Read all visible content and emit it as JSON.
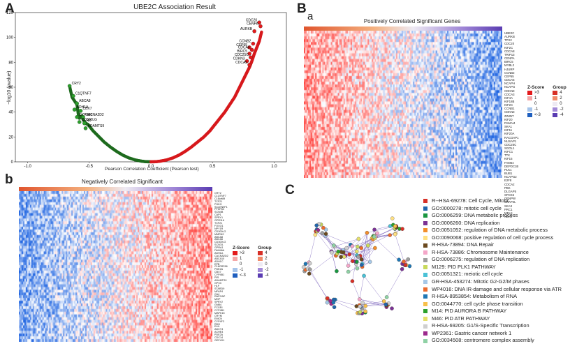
{
  "panels": {
    "A": {
      "letter": "A",
      "title": "UBE2C Association Result",
      "xlabel": "Pearson Correlation Coefficient (Pearson test)",
      "ylabel": "−log10 (pvalue)",
      "labels_pos": [
        "CDC20",
        "CENPA",
        "AURKB",
        "CCNB2",
        "CEP55",
        "CDCA8",
        "BIRC5",
        "CDC25C",
        "CDKN3",
        "CDCA5"
      ],
      "labels_neg": [
        "CRY2",
        "C1QTNF7",
        "ABCA8",
        "ADH1A",
        "CBX7",
        "CYP4B1",
        "CACNA2D2",
        "CD300LG",
        "Hlf",
        "ADAMTS9"
      ]
    },
    "B": {
      "letter": "B",
      "sub": "a",
      "title": "Positively Correlated Significant Genes",
      "genes": [
        "UBE2C",
        "AURKB",
        "TPX2",
        "CDC20",
        "KIF2C",
        "CDCA8",
        "TRIP13",
        "CENPA",
        "BIRC5",
        "MYBL2",
        "HJURP",
        "CCNB2",
        "CEP55",
        "CDCA5",
        "NCAPH",
        "NCAPG",
        "CDKN3",
        "CDCA3",
        "KIF4A",
        "KIF18B",
        "KIF2C",
        "CCNB1",
        "CDKN3",
        "ZWINT",
        "KIF20",
        "PAMAI4",
        "SKA1",
        "KIF11",
        "KIF20A",
        "RACGAP1",
        "NUSAP1",
        "CDC25C",
        "SGOL1",
        "KIFC1",
        "TTK",
        "KIF15",
        "FAM64",
        "DEPDC1B",
        "PLK1",
        "BUB1",
        "NCAPG2",
        "E2F8",
        "CDCA2",
        "PBK",
        "DLGAP5",
        "SPAG5",
        "CENPW",
        "CKAP2L",
        "SKA3",
        "PRC1",
        "MELK",
        "NEK2"
      ],
      "zscore_title": "Z-Score",
      "zscore_items": [
        ">3",
        "1",
        "0",
        "-1",
        "<-3"
      ],
      "group_title": "Group",
      "group_items": [
        "4",
        "2",
        "0",
        "-2",
        "-4"
      ]
    },
    "b": {
      "letter": "b",
      "title": "Negatively Correlated Significant",
      "genes": [
        "CRY2",
        "C1QTNF7",
        "C16orf89",
        "TCF21",
        "PHKG",
        "SCLEN9F1",
        "PFKFB3",
        "SCN4B",
        "CAP1",
        "SPRY1",
        "GPR116",
        "TCF21",
        "FOXO1",
        "NPY1R",
        "CD300LG",
        "MMRN2",
        "ABCA8",
        "ABCA6",
        "CD300LG",
        "SCN7A",
        "GPRA1",
        "FAM46A",
        "ADH1A",
        "CACNA2D2",
        "ABCA10",
        "ADH1C",
        "EPB",
        "C16ORF86",
        "PDE2A",
        "CBX7",
        "CYP4B1",
        "PIR",
        "ADAMTS9",
        "GPX3",
        "HLF",
        "STARD9",
        "MFAP4",
        "CA4",
        "RAPGAP",
        "MGP",
        "SPRY2",
        "GNB4",
        "FCGRI",
        "CYP4B1",
        "MAPK15",
        "CRYM",
        "EMCN",
        "CYP4F3",
        "RDH",
        "ELN",
        "ADCY4",
        "ACHE4",
        "PDE2A",
        "CDC14",
        "GEFLD1"
      ],
      "zscore_title": "Z-Score",
      "zscore_items": [
        ">3",
        "1",
        "0",
        "-1",
        "<-3"
      ],
      "group_title": "Group",
      "group_items": [
        "4",
        "2",
        "0",
        "-2",
        "-4"
      ]
    },
    "C": {
      "letter": "C",
      "legend": [
        {
          "label": "R--HSA-69278: Cell Cycle, Mitotic",
          "color": "#d73027"
        },
        {
          "label": "GO:0000278: mitotic cell cycle",
          "color": "#2166ac"
        },
        {
          "label": "GO:0006259: DNA metabolic process",
          "color": "#1a9641"
        },
        {
          "label": "GO:0006260: DNA replication",
          "color": "#7b3294"
        },
        {
          "label": "GO:0051052: regulation of DNA metabolic process",
          "color": "#f28e2b"
        },
        {
          "label": "GO:0090068: positive regulation of cell cycle process",
          "color": "#ffe082"
        },
        {
          "label": "R-HSA-73894: DNA Repair",
          "color": "#6b4a1f"
        },
        {
          "label": "R-HSA-73886: Chromosome Maintenance",
          "color": "#f4a6c8"
        },
        {
          "label": "GO:0006275: regulation of DNA replication",
          "color": "#9e9e9e"
        },
        {
          "label": "M129: PID PLK1 PATHWAY",
          "color": "#c8d95c"
        },
        {
          "label": "GO:0051321: meiotic cell cycle",
          "color": "#4ac1d6"
        },
        {
          "label": "GR-HSA-453274: Mitotic G2-G2/M phases",
          "color": "#a6c8e8"
        },
        {
          "label": "WP4016: DNA IR-damage and cellular response via ATR",
          "color": "#ec6b2d"
        },
        {
          "label": "R-HSA-8953854: Metabolism of RNA",
          "color": "#1f77b4"
        },
        {
          "label": "GO:0044770: cell cycle phase transition",
          "color": "#f7c04a"
        },
        {
          "label": "M14: PID AURORA B PATHWAY",
          "color": "#2ca02c"
        },
        {
          "label": "M46: PID ATR PATHWAY",
          "color": "#e6e06a"
        },
        {
          "label": "R-HSA-69205: G1/S-Specific Transcription",
          "color": "#cfcfcf"
        },
        {
          "label": "WP2361: Gastric cancer network 1",
          "color": "#9c2a8c"
        },
        {
          "label": "GO:0034508: centromere complex assembly",
          "color": "#8fd1a5"
        }
      ]
    }
  },
  "chart_data": {
    "type": "scatter",
    "title": "UBE2C Association Result",
    "xlabel": "Pearson Correlation Coefficient (Pearson test)",
    "ylabel": "−log10 (pvalue)",
    "xlim": [
      -1.1,
      1.1
    ],
    "ylim": [
      0,
      120
    ],
    "x_ticks": [
      "-1.0",
      "-0.5",
      "0.0",
      "0.5",
      "1.0"
    ],
    "y_ticks": [
      "0",
      "20",
      "40",
      "60",
      "80",
      "100",
      "120"
    ],
    "series": [
      {
        "color": "#1e6b1e",
        "x": [
          -0.66,
          -0.64,
          -0.6,
          -0.59,
          -0.58,
          -0.56,
          -0.55,
          -0.53,
          -0.51,
          -0.47,
          -0.42,
          -0.38,
          -0.33,
          -0.28,
          -0.23,
          -0.18,
          -0.13,
          -0.08,
          -0.04,
          0.0
        ],
        "y": [
          61,
          52,
          46,
          39,
          35,
          37,
          34,
          31,
          30,
          25,
          20,
          16,
          12,
          8.5,
          5.5,
          3.2,
          1.6,
          0.6,
          0.1,
          0
        ]
      },
      {
        "color": "#d7191c",
        "x": [
          0.0,
          0.04,
          0.08,
          0.13,
          0.18,
          0.23,
          0.28,
          0.33,
          0.38,
          0.43,
          0.48,
          0.52,
          0.56,
          0.6,
          0.64,
          0.68,
          0.71,
          0.74,
          0.77,
          0.8,
          0.82,
          0.84,
          0.86,
          0.88,
          0.9
        ],
        "y": [
          0,
          0.1,
          0.6,
          1.6,
          3.2,
          5.5,
          8.5,
          12,
          16,
          20,
          25,
          30,
          35,
          40,
          46,
          52,
          58,
          64,
          70,
          76,
          81,
          87,
          92,
          97,
          105
        ]
      }
    ],
    "labeled_points": [
      {
        "name": "CDC20",
        "x": 0.88,
        "y": 112
      },
      {
        "name": "CENPA",
        "x": 0.89,
        "y": 109
      },
      {
        "name": "AURKB",
        "x": 0.84,
        "y": 105
      },
      {
        "name": "CCNB2",
        "x": 0.83,
        "y": 95
      },
      {
        "name": "CEP55",
        "x": 0.8,
        "y": 92
      },
      {
        "name": "CDCA8",
        "x": 0.82,
        "y": 90
      },
      {
        "name": "BIRC5",
        "x": 0.8,
        "y": 87
      },
      {
        "name": "CDC25C",
        "x": 0.81,
        "y": 84
      },
      {
        "name": "CDKN3",
        "x": 0.78,
        "y": 81
      },
      {
        "name": "CDCA5",
        "x": 0.8,
        "y": 78
      },
      {
        "name": "CRY2",
        "x": -0.66,
        "y": 61
      },
      {
        "name": "C1QTNF7",
        "x": -0.63,
        "y": 53
      },
      {
        "name": "ABCA8",
        "x": -0.6,
        "y": 47
      },
      {
        "name": "ADH1A",
        "x": -0.62,
        "y": 42
      },
      {
        "name": "CBX7",
        "x": -0.57,
        "y": 41
      },
      {
        "name": "CYP4B1",
        "x": -0.6,
        "y": 36
      },
      {
        "name": "CACNA2D2",
        "x": -0.55,
        "y": 36
      },
      {
        "name": "CD300LG",
        "x": -0.58,
        "y": 32
      },
      {
        "name": "Hlf",
        "x": -0.54,
        "y": 31
      },
      {
        "name": "ADAMTS9",
        "x": -0.53,
        "y": 27
      }
    ]
  }
}
